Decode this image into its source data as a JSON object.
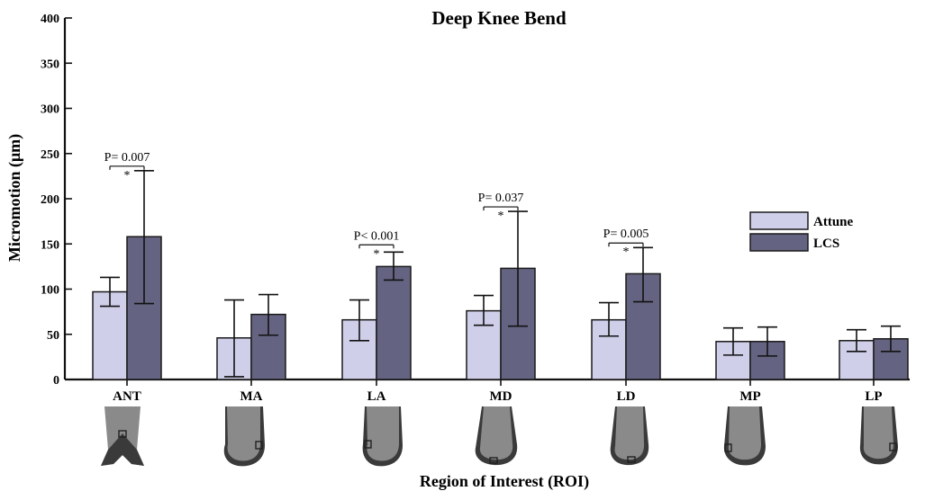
{
  "chart_data": {
    "type": "bar",
    "title": "Deep Knee Bend",
    "xlabel": "Region of Interest (ROI)",
    "ylabel": "Micromotion (μm)",
    "ylim": [
      0,
      400
    ],
    "yticks": [
      0,
      50,
      100,
      150,
      200,
      250,
      300,
      350,
      400
    ],
    "categories": [
      "ANT",
      "MA",
      "LA",
      "MD",
      "LD",
      "MP",
      "LP"
    ],
    "series": [
      {
        "name": "Attune",
        "color": "#cfcfea",
        "values": [
          97,
          46,
          66,
          76,
          66,
          42,
          43
        ],
        "err_low": [
          81,
          3,
          43,
          60,
          48,
          27,
          31
        ],
        "err_high": [
          113,
          88,
          88,
          93,
          85,
          57,
          55
        ]
      },
      {
        "name": "LCS",
        "color": "#646482",
        "values": [
          158,
          72,
          125,
          123,
          117,
          42,
          45
        ],
        "err_low": [
          84,
          49,
          110,
          59,
          86,
          26,
          31
        ],
        "err_high": [
          231,
          94,
          141,
          186,
          146,
          58,
          59
        ]
      }
    ],
    "annotations": [
      {
        "category": "ANT",
        "text": "P= 0.007",
        "mark": "*",
        "y": 236
      },
      {
        "category": "LA",
        "text": "P< 0.001",
        "mark": "*",
        "y": 149
      },
      {
        "category": "MD",
        "text": "P= 0.037",
        "mark": "*",
        "y": 191
      },
      {
        "category": "LD",
        "text": "P= 0.005",
        "mark": "*",
        "y": 151
      }
    ],
    "legend": "right",
    "grid": false
  },
  "roi_diagrams": {
    "icons": [
      "femoral-component-anterior-icon",
      "femoral-component-roi-icon"
    ],
    "colors": {
      "bone": "#8a8a8a",
      "implant": "#3a3a3a",
      "marker": "#202020"
    }
  }
}
